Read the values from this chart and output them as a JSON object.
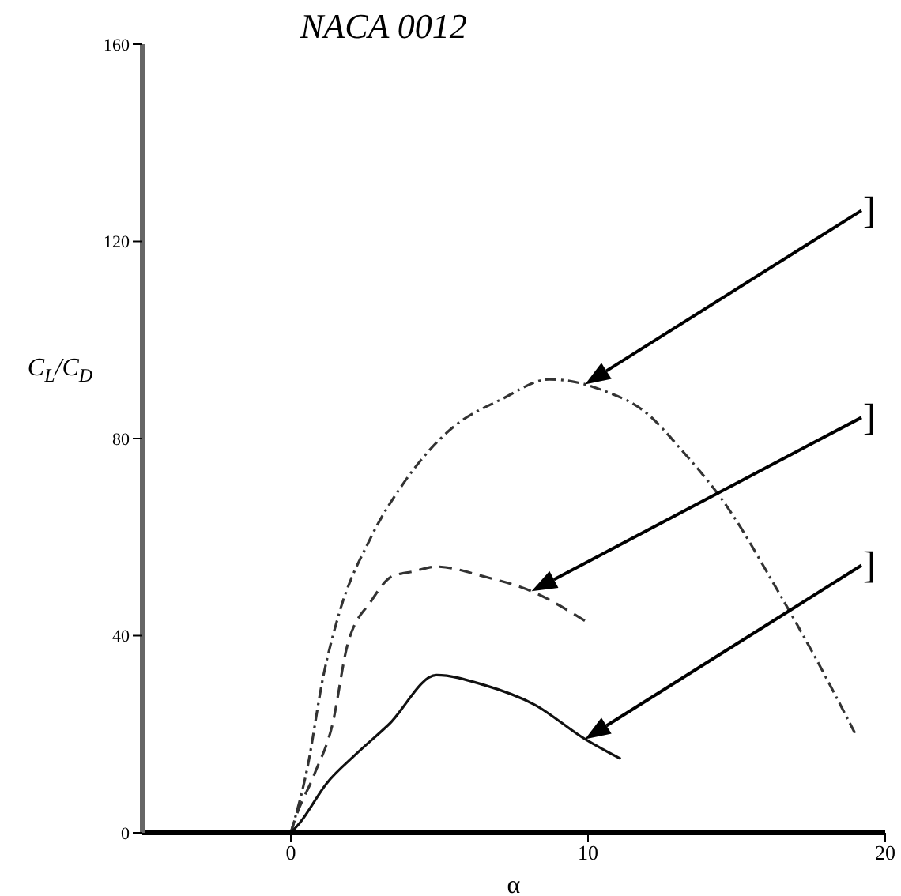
{
  "chart_data": {
    "type": "line",
    "title": "NACA 0012",
    "xlabel": "α",
    "ylabel": "C$_{L}$/C$_{D}$",
    "xlim": [
      -5,
      20
    ],
    "ylim": [
      0,
      160
    ],
    "xticks": [
      0,
      10,
      20
    ],
    "yticks": [
      0,
      40,
      80,
      120,
      160
    ],
    "grid": false,
    "marker": "none",
    "series": [
      {
        "color": "#333333",
        "line_style": "dotted",
        "x": [
          0,
          0.55,
          1.1,
          1.6,
          2.7,
          3.8,
          5.4,
          7.1,
          8.7,
          9.9,
          10.4,
          12,
          13.1,
          14.7,
          16.3,
          17.7,
          19
        ],
        "values": [
          0,
          13,
          32,
          44,
          60,
          71,
          82,
          88,
          92,
          91,
          90,
          85,
          78,
          66,
          50,
          35,
          20
        ]
      },
      {
        "color": "#333333",
        "line_style": "dashed",
        "x": [
          0,
          0.1,
          0.8,
          1.4,
          1.9,
          2.7,
          3.4,
          4.1,
          4.9,
          6.5,
          8.1,
          9.9
        ],
        "values": [
          0,
          2,
          12,
          22,
          38,
          47,
          52,
          53,
          54,
          52,
          49,
          43
        ]
      },
      {
        "color": "#111111",
        "line_style": "solid",
        "x": [
          0,
          0.3,
          1.2,
          2.2,
          3.3,
          4.9,
          6.5,
          8.2,
          9.9,
          11.1
        ],
        "values": [
          0,
          2,
          10,
          16,
          22,
          32,
          30,
          26,
          19,
          15
        ]
      }
    ],
    "annotations": [
      "]",
      "]",
      "]"
    ]
  }
}
